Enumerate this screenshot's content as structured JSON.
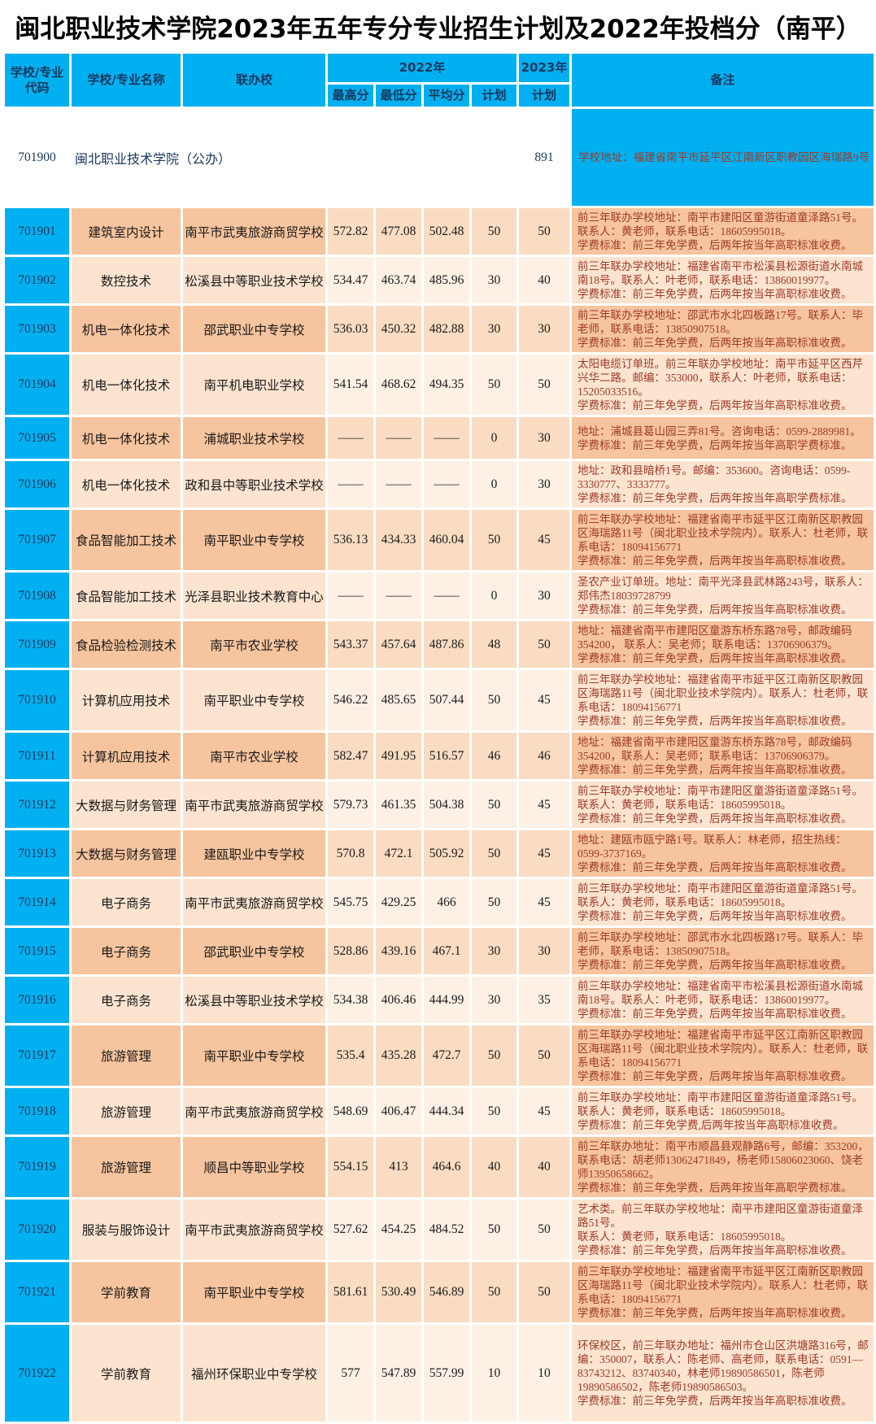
{
  "title": "闽北职业技术学院2023年五年专分专业招生计划及2022年投档分（南平）",
  "colors": {
    "header_blue": "#00B0F0",
    "row_dark_peach": "#F6C49E",
    "row_light_peach": "#FCE4D0",
    "remark_text": "#9E3A28",
    "header_text": "#17375E"
  },
  "header": {
    "col_code": "学校/专业代码",
    "col_name": "学校/专业名称",
    "col_partner": "联办校",
    "group_2022": "2022年",
    "col_max": "最高分",
    "col_min": "最低分",
    "col_avg": "平均分",
    "col_plan2022": "计划",
    "group_2023": "2023年",
    "col_plan2023": "计划",
    "col_remark": "备注"
  },
  "school_row": {
    "code": "701900",
    "name": "闽北职业技术学院（公办）",
    "plan_2023": "891",
    "remark": "学校地址：福建省南平市延平区江南新区职教园区海瑞路9号"
  },
  "rows": [
    {
      "code": "701901",
      "name": "建筑室内设计",
      "partner": "南平市武夷旅游商贸学校",
      "max": "572.82",
      "min": "477.08",
      "avg": "502.48",
      "plan2022": "50",
      "plan2023": "50",
      "remark_lines": [
        "前三年联办学校地址：南平市建阳区童游街道童泽路51号。",
        "联系人：黄老师，联系电话：18605995018。",
        "学费标准：前三年免学费，后两年按当年高职标准收费。"
      ]
    },
    {
      "code": "701902",
      "name": "数控技术",
      "partner": "松溪县中等职业技术学校",
      "max": "534.47",
      "min": "463.74",
      "avg": "485.96",
      "plan2022": "30",
      "plan2023": "40",
      "remark_lines": [
        "前三年联办学校地址：福建省南平市松溪县松源街道水南城南18号。联系人：叶老师，联系电话：13860019977。",
        "学费标准：前三年免学费，后两年按当年高职标准收费。"
      ]
    },
    {
      "code": "701903",
      "name": "机电一体化技术",
      "partner": "邵武职业中专学校",
      "max": "536.03",
      "min": "450.32",
      "avg": "482.88",
      "plan2022": "30",
      "plan2023": "30",
      "remark_lines": [
        "前三年联办学校地址：邵武市水北四板路17号。联系人：毕老师，联系电话：13850907518。",
        "学费标准：前三年免学费，后两年按当年高职标准收费。"
      ]
    },
    {
      "code": "701904",
      "name": "机电一体化技术",
      "partner": "南平机电职业学校",
      "max": "541.54",
      "min": "468.62",
      "avg": "494.35",
      "plan2022": "50",
      "plan2023": "50",
      "remark_lines": [
        "太阳电缆订单班。前三年联办学校地址：南平市延平区西芹兴华二路。邮编：353000，联系人：叶老师，联系电话：15205033516。",
        "学费标准：前三年免学费，后两年按当年高职标准收费。"
      ]
    },
    {
      "code": "701905",
      "name": "机电一体化技术",
      "partner": "浦城职业技术学校",
      "max": "——",
      "min": "——",
      "avg": "——",
      "plan2022": "0",
      "plan2023": "30",
      "remark_lines": [
        "地址：浦城县葛山园三弄81号。咨询电话：0599-2889981。",
        "学费标准：前三年免学费，后两年按当年高职学费标准。"
      ]
    },
    {
      "code": "701906",
      "name": "机电一体化技术",
      "partner": "政和县中等职业技术学校",
      "max": "——",
      "min": "——",
      "avg": "——",
      "plan2022": "0",
      "plan2023": "30",
      "remark_lines": [
        "地址：政和县暗桥1号。邮编：353600。咨询电话：0599-3330777、3333777。",
        "学费标准：前三年免学费，后两年按当年高职学费标准。"
      ]
    },
    {
      "code": "701907",
      "name": "食品智能加工技术",
      "partner": "南平职业中专学校",
      "max": "536.13",
      "min": "434.33",
      "avg": "460.04",
      "plan2022": "50",
      "plan2023": "45",
      "remark_lines": [
        "前三年联办学校地址：福建省南平市延平区江南新区职教园区海瑞路11号（闽北职业技术学院内）。联系人：杜老师，联系电话：18094156771",
        "学费标准：前三年免学费，后两年按当年高职标准收费。"
      ]
    },
    {
      "code": "701908",
      "name": "食品智能加工技术",
      "partner": "光泽县职业技术教育中心",
      "max": "——",
      "min": "——",
      "avg": "——",
      "plan2022": "0",
      "plan2023": "30",
      "remark_lines": [
        "圣农产业订单班。地址：南平光泽县武林路243号，联系人：郑伟杰18039728799",
        "学费标准：前三年免学费，后两年按当年高职标准收费。"
      ]
    },
    {
      "code": "701909",
      "name": "食品检验检测技术",
      "partner": "南平市农业学校",
      "max": "543.37",
      "min": "457.64",
      "avg": "487.86",
      "plan2022": "48",
      "plan2023": "50",
      "remark_lines": [
        "地址：福建省南平市建阳区童游东桥东路78号，邮政编码354200， 联系人：吴老师；联系电话：13706906379。",
        "学费标准：前三年免学费，后两年按当年高职标准收费。"
      ]
    },
    {
      "code": "701910",
      "name": "计算机应用技术",
      "partner": "南平职业中专学校",
      "max": "546.22",
      "min": "485.65",
      "avg": "507.44",
      "plan2022": "50",
      "plan2023": "45",
      "remark_lines": [
        "前三年联办学校地址：福建省南平市延平区江南新区职教园区海瑞路11号（闽北职业技术学院内）。联系人：杜老师，联系电话：18094156771",
        "学费标准：前三年免学费，后两年按当年高职标准收费。"
      ]
    },
    {
      "code": "701911",
      "name": "计算机应用技术",
      "partner": "南平市农业学校",
      "max": "582.47",
      "min": "491.95",
      "avg": "516.57",
      "plan2022": "46",
      "plan2023": "46",
      "remark_lines": [
        "地址：福建省南平市建阳区童游东桥东路78号，邮政编码354200，联系人：吴老师；联系电话：13706906379。",
        "学费标准：前三年免学费，后两年按当年高职标准收费。"
      ]
    },
    {
      "code": "701912",
      "name": "大数据与财务管理",
      "partner": "南平市武夷旅游商贸学校",
      "max": "579.73",
      "min": "461.35",
      "avg": "504.38",
      "plan2022": "50",
      "plan2023": "45",
      "remark_lines": [
        "前三年联办学校地址：南平市建阳区童游街道童泽路51号。",
        "联系人：黄老师，联系电话：18605995018。",
        "学费标准：前三年免学费，后两年按当年高职标准收费。"
      ]
    },
    {
      "code": "701913",
      "name": "大数据与财务管理",
      "partner": "建瓯职业中专学校",
      "max": "570.8",
      "min": "472.1",
      "avg": "505.92",
      "plan2022": "50",
      "plan2023": "45",
      "remark_lines": [
        "地址：建瓯市瓯宁路1号。联系人：林老师，招生热线：0599-3737169。",
        "学费标准：前三年免学费，后两年按当年高职标准收费。"
      ]
    },
    {
      "code": "701914",
      "name": "电子商务",
      "partner": "南平市武夷旅游商贸学校",
      "max": "545.75",
      "min": "429.25",
      "avg": "466",
      "plan2022": "50",
      "plan2023": "45",
      "remark_lines": [
        "前三年联办学校地址：南平市建阳区童游街道童泽路51号。",
        "联系人：黄老师，联系电话：18605995018。",
        "学费标准：前三年免学费，后两年按当年高职标准收费。"
      ]
    },
    {
      "code": "701915",
      "name": "电子商务",
      "partner": "邵武职业中专学校",
      "max": "528.86",
      "min": "439.16",
      "avg": "467.1",
      "plan2022": "30",
      "plan2023": "30",
      "remark_lines": [
        "前三年联办学校地址：邵武市水北四板路17号。联系人：毕老师，联系电话：13850907518。",
        "学费标准：前三年免学费，后两年按当年高职标准收费。"
      ]
    },
    {
      "code": "701916",
      "name": "电子商务",
      "partner": "松溪县中等职业技术学校",
      "max": "534.38",
      "min": "406.46",
      "avg": "444.99",
      "plan2022": "30",
      "plan2023": "35",
      "remark_lines": [
        "前三年联办学校地址：福建省南平市松溪县松源街道水南城南18号。联系人：叶老师，联系电话：13860019977。",
        "学费标准：前三年免学费，后两年按当年高职标准收费。"
      ]
    },
    {
      "code": "701917",
      "name": "旅游管理",
      "partner": "南平职业中专学校",
      "max": "535.4",
      "min": "435.28",
      "avg": "472.7",
      "plan2022": "50",
      "plan2023": "50",
      "remark_lines": [
        "前三年联办学校地址：福建省南平市延平区江南新区职教园区海瑞路11号（闽北职业技术学院内）。联系人：杜老师，联系电话：18094156771",
        "学费标准：前三年免学费，后两年按当年高职标准收费。"
      ]
    },
    {
      "code": "701918",
      "name": "旅游管理",
      "partner": "南平市武夷旅游商贸学校",
      "max": "548.69",
      "min": "406.47",
      "avg": "444.34",
      "plan2022": "50",
      "plan2023": "45",
      "remark_lines": [
        "前三年联办学校地址：南平市建阳区童游街道童泽路51号。",
        "联系人：黄老师，联系电话：18605995018。",
        "学费标准：前三年免学费,后两年按当年高职标准收费。"
      ]
    },
    {
      "code": "701919",
      "name": "旅游管理",
      "partner": "顺昌中等职业学校",
      "max": "554.15",
      "min": "413",
      "avg": "464.6",
      "plan2022": "40",
      "plan2023": "40",
      "remark_lines": [
        "前三年联办地址：南平市顺昌县观静路6号，邮编：353200，联系电话：胡老师13062471849，杨老师15806023060、饶老师13950658662。",
        "学费标准：前三年免学费，后两年按当年高职学费标准。"
      ]
    },
    {
      "code": "701920",
      "name": "服装与服饰设计",
      "partner": "南平市武夷旅游商贸学校",
      "max": "527.62",
      "min": "454.25",
      "avg": "484.52",
      "plan2022": "50",
      "plan2023": "50",
      "remark_lines": [
        "艺术类。前三年联办学校地址：南平市建阳区童游街道童泽路51号。",
        "联系人：黄老师，联系电话：18605995018。",
        "学费标准：前三年免学费，后两年按当年高职标准收费。"
      ]
    },
    {
      "code": "701921",
      "name": "学前教育",
      "partner": "南平职业中专学校",
      "max": "581.61",
      "min": "530.49",
      "avg": "546.89",
      "plan2022": "50",
      "plan2023": "50",
      "remark_lines": [
        "前三年联办学校地址：福建省南平市延平区江南新区职教园区海瑞路11号（闽北职业技术学院内）。联系人：杜老师，联系电话：18094156771",
        "学费标准：前三年免学费，后两年按当年高职标准收费。"
      ]
    },
    {
      "code": "701922",
      "name": "学前教育",
      "partner": "福州环保职业中专学校",
      "max": "577",
      "min": "547.89",
      "avg": "557.99",
      "plan2022": "10",
      "plan2023": "10",
      "remark_lines": [
        "环保校区，前三年联办地址：福州市仓山区洪塘路316号，邮编：350007，联系人：陈老师、高老师，联系电话：0591—83743212、83740340，林老师19890586501，陈老师19890586502，陈老师19890586503。",
        "学费标准：前三年免学费，后两年按当年高职标准收费。"
      ]
    }
  ]
}
